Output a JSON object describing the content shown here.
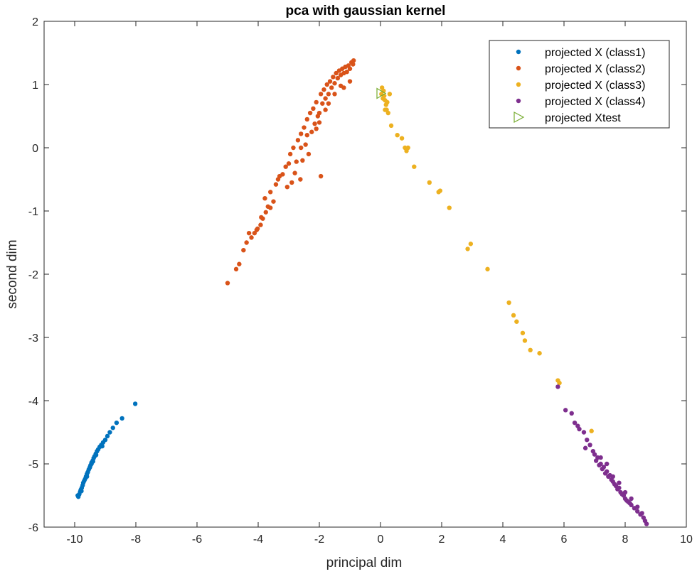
{
  "chart_data": {
    "type": "scatter",
    "title": "pca with gaussian kernel",
    "xlabel": "principal dim",
    "ylabel": "second dim",
    "xlim": [
      -11,
      10
    ],
    "ylim": [
      -6,
      2
    ],
    "xticks": [
      -10,
      -8,
      -6,
      -4,
      -2,
      0,
      2,
      4,
      6,
      8,
      10
    ],
    "xtick_labels": [
      "-10",
      "-8",
      "-6",
      "-4",
      "-2",
      "0",
      "2",
      "4",
      "6",
      "8",
      "10"
    ],
    "yticks": [
      -6,
      -5,
      -4,
      -3,
      -2,
      -1,
      0,
      1,
      2
    ],
    "ytick_labels": [
      "-6",
      "-5",
      "-4",
      "-3",
      "-2",
      "-1",
      "0",
      "1",
      "2"
    ],
    "grid": false,
    "legend_position": "top-right",
    "series": [
      {
        "name": "projected X (class1)",
        "color": "#0072BD",
        "marker": "dot",
        "points": [
          [
            -9.88,
            -5.52
          ],
          [
            -9.85,
            -5.48
          ],
          [
            -9.82,
            -5.44
          ],
          [
            -9.8,
            -5.41
          ],
          [
            -9.77,
            -5.38
          ],
          [
            -9.74,
            -5.34
          ],
          [
            -9.72,
            -5.3
          ],
          [
            -9.69,
            -5.27
          ],
          [
            -9.66,
            -5.24
          ],
          [
            -9.63,
            -5.2
          ],
          [
            -9.6,
            -5.16
          ],
          [
            -9.57,
            -5.13
          ],
          [
            -9.54,
            -5.09
          ],
          [
            -9.51,
            -5.06
          ],
          [
            -9.48,
            -5.02
          ],
          [
            -9.45,
            -4.98
          ],
          [
            -9.41,
            -4.95
          ],
          [
            -9.38,
            -4.91
          ],
          [
            -9.35,
            -4.88
          ],
          [
            -9.31,
            -4.84
          ],
          [
            -9.27,
            -4.8
          ],
          [
            -9.23,
            -4.77
          ],
          [
            -9.18,
            -4.73
          ],
          [
            -9.13,
            -4.7
          ],
          [
            -9.07,
            -4.66
          ],
          [
            -9.0,
            -4.62
          ],
          [
            -8.93,
            -4.56
          ],
          [
            -8.85,
            -4.5
          ],
          [
            -8.75,
            -4.43
          ],
          [
            -8.63,
            -4.35
          ],
          [
            -8.45,
            -4.28
          ],
          [
            -8.02,
            -4.05
          ],
          [
            -9.9,
            -5.5
          ],
          [
            -9.78,
            -5.43
          ],
          [
            -9.6,
            -5.2
          ],
          [
            -9.45,
            -5.0
          ],
          [
            -9.3,
            -4.86
          ],
          [
            -9.5,
            -5.05
          ],
          [
            -9.4,
            -4.96
          ],
          [
            -9.1,
            -4.72
          ]
        ]
      },
      {
        "name": "projected X (class2)",
        "color": "#D95319",
        "marker": "dot",
        "points": [
          [
            -5.0,
            -2.14
          ],
          [
            -4.72,
            -1.92
          ],
          [
            -4.62,
            -1.84
          ],
          [
            -4.48,
            -1.62
          ],
          [
            -4.38,
            -1.5
          ],
          [
            -4.22,
            -1.42
          ],
          [
            -4.12,
            -1.35
          ],
          [
            -4.05,
            -1.3
          ],
          [
            -4.02,
            -1.28
          ],
          [
            -3.92,
            -1.22
          ],
          [
            -3.85,
            -1.12
          ],
          [
            -3.75,
            -1.02
          ],
          [
            -3.68,
            -0.93
          ],
          [
            -3.78,
            -0.8
          ],
          [
            -3.6,
            -0.7
          ],
          [
            -3.5,
            -0.85
          ],
          [
            -3.42,
            -0.58
          ],
          [
            -3.35,
            -0.5
          ],
          [
            -3.3,
            -0.45
          ],
          [
            -3.2,
            -0.42
          ],
          [
            -3.1,
            -0.3
          ],
          [
            -3.05,
            -0.62
          ],
          [
            -2.95,
            -0.1
          ],
          [
            -2.85,
            0.0
          ],
          [
            -2.8,
            -0.4
          ],
          [
            -2.75,
            -0.22
          ],
          [
            -2.7,
            0.12
          ],
          [
            -2.62,
            -0.5
          ],
          [
            -2.6,
            0.22
          ],
          [
            -2.55,
            -0.2
          ],
          [
            -2.5,
            0.32
          ],
          [
            -2.45,
            0.05
          ],
          [
            -2.4,
            0.45
          ],
          [
            -2.35,
            -0.1
          ],
          [
            -2.3,
            0.55
          ],
          [
            -2.25,
            0.25
          ],
          [
            -2.2,
            0.62
          ],
          [
            -2.15,
            0.38
          ],
          [
            -2.1,
            0.72
          ],
          [
            -2.05,
            0.5
          ],
          [
            -2.0,
            0.55
          ],
          [
            -1.95,
            0.85
          ],
          [
            -1.9,
            0.7
          ],
          [
            -1.85,
            0.92
          ],
          [
            -1.8,
            0.78
          ],
          [
            -1.75,
            1.0
          ],
          [
            -1.7,
            0.85
          ],
          [
            -1.65,
            1.05
          ],
          [
            -1.6,
            0.95
          ],
          [
            -1.55,
            1.12
          ],
          [
            -1.5,
            1.02
          ],
          [
            -1.45,
            1.18
          ],
          [
            -1.4,
            1.1
          ],
          [
            -1.35,
            1.22
          ],
          [
            -1.3,
            1.15
          ],
          [
            -1.25,
            1.25
          ],
          [
            -1.2,
            1.18
          ],
          [
            -1.15,
            1.28
          ],
          [
            -1.1,
            1.2
          ],
          [
            -1.05,
            1.3
          ],
          [
            -1.0,
            1.25
          ],
          [
            -0.95,
            1.35
          ],
          [
            -0.9,
            1.32
          ],
          [
            -0.88,
            1.38
          ],
          [
            -1.2,
            0.95
          ],
          [
            -1.5,
            0.85
          ],
          [
            -1.8,
            0.6
          ],
          [
            -2.1,
            0.3
          ],
          [
            -2.4,
            0.2
          ],
          [
            -1.95,
            -0.45
          ],
          [
            -3.9,
            -1.1
          ],
          [
            -2.6,
            0.0
          ],
          [
            -2.0,
            0.4
          ],
          [
            -3.0,
            -0.25
          ],
          [
            -2.9,
            -0.55
          ],
          [
            -1.0,
            1.05
          ],
          [
            -1.3,
            0.98
          ],
          [
            -1.7,
            0.7
          ],
          [
            -3.6,
            -0.95
          ],
          [
            -4.3,
            -1.35
          ]
        ]
      },
      {
        "name": "projected X (class3)",
        "color": "#EDB120",
        "marker": "dot",
        "points": [
          [
            0.05,
            0.95
          ],
          [
            0.1,
            0.9
          ],
          [
            0.12,
            0.82
          ],
          [
            0.15,
            0.75
          ],
          [
            0.18,
            0.68
          ],
          [
            0.2,
            0.6
          ],
          [
            0.25,
            0.55
          ],
          [
            0.08,
            0.78
          ],
          [
            0.03,
            0.85
          ],
          [
            0.22,
            0.72
          ],
          [
            0.3,
            0.85
          ],
          [
            0.15,
            0.6
          ],
          [
            0.35,
            0.35
          ],
          [
            0.55,
            0.2
          ],
          [
            0.7,
            0.15
          ],
          [
            0.8,
            0.0
          ],
          [
            0.85,
            -0.05
          ],
          [
            0.9,
            0.0
          ],
          [
            1.1,
            -0.3
          ],
          [
            1.6,
            -0.55
          ],
          [
            1.9,
            -0.7
          ],
          [
            1.95,
            -0.68
          ],
          [
            2.25,
            -0.95
          ],
          [
            2.85,
            -1.6
          ],
          [
            2.95,
            -1.52
          ],
          [
            3.5,
            -1.92
          ],
          [
            4.2,
            -2.45
          ],
          [
            4.35,
            -2.65
          ],
          [
            4.45,
            -2.75
          ],
          [
            4.65,
            -2.93
          ],
          [
            4.72,
            -3.05
          ],
          [
            4.9,
            -3.2
          ],
          [
            5.2,
            -3.25
          ],
          [
            5.8,
            -3.68
          ],
          [
            5.85,
            -3.72
          ],
          [
            6.9,
            -4.48
          ]
        ]
      },
      {
        "name": "projected X (class4)",
        "color": "#7E2F8E",
        "marker": "dot",
        "points": [
          [
            5.8,
            -3.78
          ],
          [
            6.05,
            -4.15
          ],
          [
            6.25,
            -4.2
          ],
          [
            6.35,
            -4.35
          ],
          [
            6.45,
            -4.4
          ],
          [
            6.5,
            -4.45
          ],
          [
            6.65,
            -4.5
          ],
          [
            6.75,
            -4.62
          ],
          [
            6.7,
            -4.75
          ],
          [
            6.85,
            -4.7
          ],
          [
            7.0,
            -4.85
          ],
          [
            7.05,
            -4.95
          ],
          [
            7.1,
            -4.9
          ],
          [
            7.15,
            -5.02
          ],
          [
            7.2,
            -5.0
          ],
          [
            7.25,
            -5.08
          ],
          [
            7.3,
            -5.05
          ],
          [
            7.35,
            -5.15
          ],
          [
            7.4,
            -5.12
          ],
          [
            7.45,
            -5.2
          ],
          [
            7.5,
            -5.18
          ],
          [
            7.55,
            -5.25
          ],
          [
            7.6,
            -5.28
          ],
          [
            7.65,
            -5.32
          ],
          [
            7.7,
            -5.35
          ],
          [
            7.75,
            -5.4
          ],
          [
            7.8,
            -5.38
          ],
          [
            7.85,
            -5.45
          ],
          [
            7.9,
            -5.48
          ],
          [
            7.95,
            -5.5
          ],
          [
            8.0,
            -5.55
          ],
          [
            8.05,
            -5.58
          ],
          [
            8.1,
            -5.6
          ],
          [
            8.15,
            -5.62
          ],
          [
            8.2,
            -5.65
          ],
          [
            8.3,
            -5.7
          ],
          [
            8.4,
            -5.75
          ],
          [
            8.5,
            -5.8
          ],
          [
            8.6,
            -5.85
          ],
          [
            8.65,
            -5.9
          ],
          [
            8.7,
            -5.95
          ],
          [
            7.6,
            -5.2
          ],
          [
            7.8,
            -5.3
          ],
          [
            8.0,
            -5.45
          ],
          [
            8.2,
            -5.55
          ],
          [
            8.4,
            -5.68
          ],
          [
            7.4,
            -5.0
          ],
          [
            7.2,
            -4.9
          ],
          [
            6.95,
            -4.8
          ],
          [
            8.55,
            -5.78
          ]
        ]
      },
      {
        "name": "projected Xtest",
        "color": "#77AC30",
        "marker": "triangle-right",
        "points": [
          [
            0.0,
            0.86
          ]
        ]
      }
    ]
  }
}
